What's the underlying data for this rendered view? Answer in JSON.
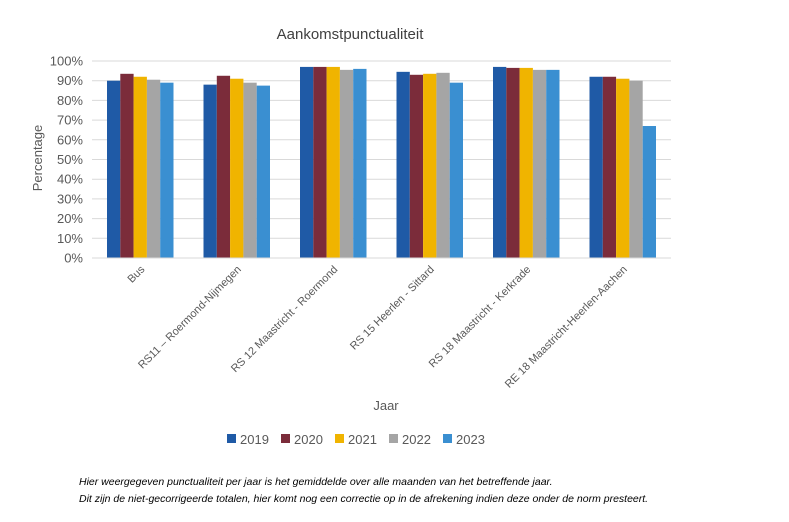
{
  "chart_data": {
    "type": "bar",
    "title": "Aankomstpunctualiteit",
    "xlabel": "Jaar",
    "ylabel": "Percentage",
    "ylim": [
      0,
      100
    ],
    "yticks": [
      "0%",
      "10%",
      "20%",
      "30%",
      "40%",
      "50%",
      "60%",
      "70%",
      "80%",
      "90%",
      "100%"
    ],
    "grid": true,
    "legend_position": "bottom",
    "categories": [
      "Bus",
      "RS11 – Roermond-Nijmegen",
      "RS 12 Maastricht - Roermond",
      "RS 15 Heerlen - Sittard",
      "RS 18 Maastricht - Kerkrade",
      "RE 18 Maastricht-Heerlen-Aachen"
    ],
    "series": [
      {
        "name": "2019",
        "color": "#1F5AA6",
        "values": [
          90,
          88,
          97,
          94.5,
          97,
          92
        ]
      },
      {
        "name": "2020",
        "color": "#7B2C3A",
        "values": [
          93.5,
          92.5,
          97,
          93,
          96.5,
          92
        ]
      },
      {
        "name": "2021",
        "color": "#F0B400",
        "values": [
          92,
          91,
          97,
          93.5,
          96.5,
          91
        ]
      },
      {
        "name": "2022",
        "color": "#A5A5A5",
        "values": [
          90.5,
          89,
          95.5,
          94,
          95.5,
          90
        ]
      },
      {
        "name": "2023",
        "color": "#3A8FD1",
        "values": [
          89,
          87.5,
          96,
          89,
          95.5,
          67
        ]
      }
    ]
  },
  "footnotes": [
    "Hier weergegeven punctualiteit per jaar is het gemiddelde over alle maanden van het betreffende jaar.",
    "Dit zijn de niet-gecorrigeerde totalen, hier komt nog een correctie op in de afrekening indien deze onder de norm presteert."
  ]
}
